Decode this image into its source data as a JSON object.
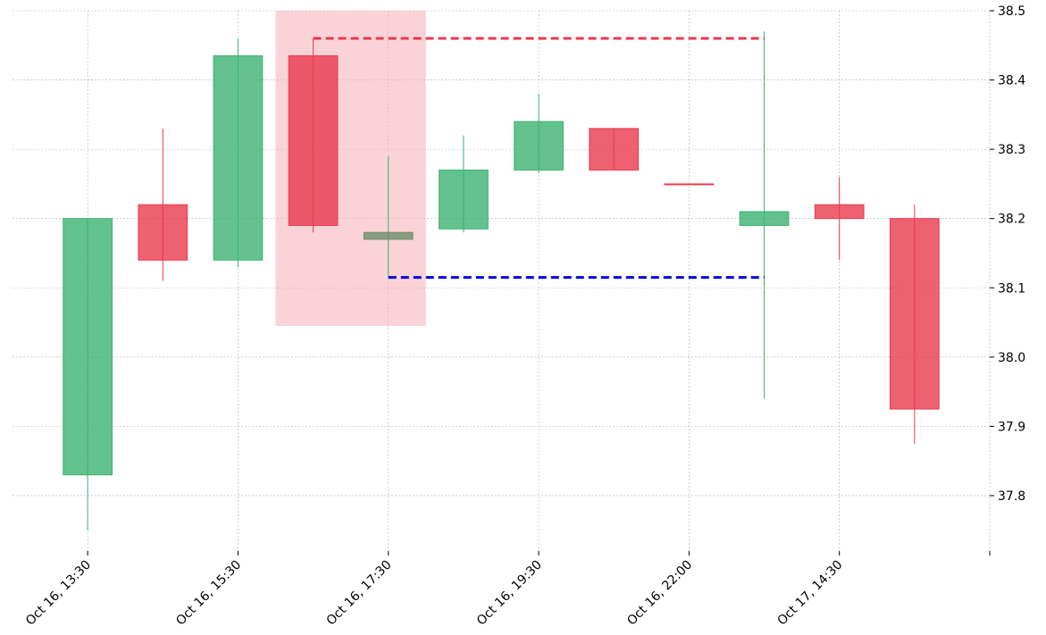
{
  "chart_data": {
    "type": "candlestick",
    "title": "",
    "xlabel": "",
    "ylabel": "",
    "ylim": [
      37.72,
      38.5
    ],
    "yticks": [
      37.8,
      37.9,
      38.0,
      38.1,
      38.2,
      38.3,
      38.4,
      38.5
    ],
    "ytick_labels": [
      "37.8",
      "37.9",
      "38.0",
      "38.1",
      "38.2",
      "38.3",
      "38.4",
      "38.5"
    ],
    "xtick_positions": [
      0,
      2,
      4,
      6,
      8,
      10,
      12
    ],
    "xtick_labels": [
      "Oct 16, 13:30",
      "Oct 16, 15:30",
      "Oct 16, 17:30",
      "Oct 16, 19:30",
      "Oct 16, 22:00",
      "Oct 17, 14:30",
      ""
    ],
    "grid": true,
    "candles": [
      {
        "open": 37.83,
        "high": 38.2,
        "low": 37.75,
        "close": 38.2
      },
      {
        "open": 38.22,
        "high": 38.33,
        "low": 38.11,
        "close": 38.14
      },
      {
        "open": 38.14,
        "high": 38.46,
        "low": 38.13,
        "close": 38.435
      },
      {
        "open": 38.435,
        "high": 38.46,
        "low": 38.18,
        "close": 38.19
      },
      {
        "open": 38.17,
        "high": 38.29,
        "low": 38.115,
        "close": 38.18
      },
      {
        "open": 38.185,
        "high": 38.32,
        "low": 38.18,
        "close": 38.27
      },
      {
        "open": 38.27,
        "high": 38.38,
        "low": 38.265,
        "close": 38.34
      },
      {
        "open": 38.33,
        "high": 38.33,
        "low": 38.27,
        "close": 38.27
      },
      {
        "open": 38.25,
        "high": 38.25,
        "low": 38.25,
        "close": 38.25
      },
      {
        "open": 38.19,
        "high": 38.47,
        "low": 37.94,
        "close": 38.21
      },
      {
        "open": 38.22,
        "high": 38.26,
        "low": 38.14,
        "close": 38.2
      },
      {
        "open": 38.2,
        "high": 38.22,
        "low": 37.875,
        "close": 37.925
      }
    ],
    "highlight": {
      "x_start": 2.5,
      "x_end": 4.5,
      "y_low": 38.045,
      "y_high": 38.5
    },
    "resistance": {
      "y": 38.46,
      "x_start": 3,
      "x_end": 9
    },
    "support": {
      "y": 38.115,
      "x_start": 4,
      "x_end": 9
    },
    "colors": {
      "up": "#3cb371",
      "down": "#e8394d",
      "doji": "#6e8f6b",
      "highlight": "#f5b5bd",
      "resistance": "#e8394d",
      "support": "#0000e0",
      "grid": "#b0b0b0"
    }
  }
}
